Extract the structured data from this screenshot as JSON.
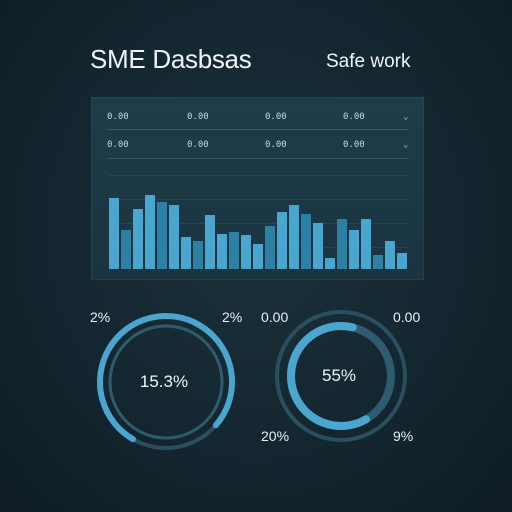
{
  "header": {
    "title": "SME Dasbsas",
    "subtitle": "Safe work"
  },
  "table_panel": {
    "row1": [
      "0.00",
      "0.00",
      "0.00",
      "0.00"
    ],
    "row2": [
      "0.00",
      "0.00",
      "0.00",
      "0.00"
    ],
    "chevron_icon": "chevron-down-icon"
  },
  "chart_data": {
    "type": "bar",
    "series": [
      {
        "values": [
          100,
          55,
          84,
          105,
          95,
          90,
          45,
          39,
          76,
          50,
          52,
          48,
          35,
          60,
          80,
          90,
          78,
          65,
          15,
          70,
          55,
          70,
          20,
          40,
          22
        ]
      }
    ]
  },
  "donut_left": {
    "center_value": "15.3%",
    "top_left_label": "2%",
    "top_right_label": "2%",
    "ring_fill": 0.78
  },
  "donut_right": {
    "center_value": "55%",
    "top_left_label": "0.00",
    "top_right_label": "0.00",
    "bottom_left_label": "20%",
    "bottom_right_label": "9%",
    "ring_fill": 0.62
  },
  "colors": {
    "accent": "#4aa5cf",
    "accent_dark": "#2d7fa4",
    "panel": "#1f3c4a",
    "background": "#142630"
  }
}
